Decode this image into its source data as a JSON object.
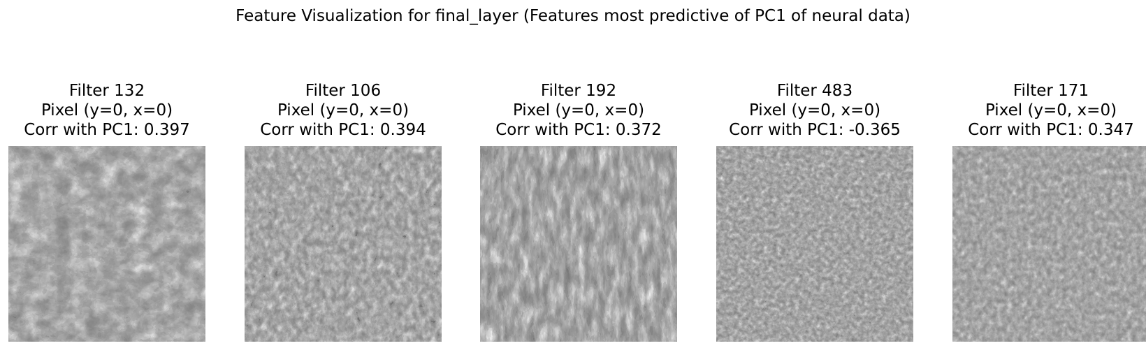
{
  "figure": {
    "title": "Feature Visualization for final_layer (Features most predictive of PC1 of neural data)"
  },
  "panels": [
    {
      "filter_label": "Filter 132",
      "pixel_label": "Pixel (y=0, x=0)",
      "corr_label": "Corr with PC1: 0.397"
    },
    {
      "filter_label": "Filter 106",
      "pixel_label": "Pixel (y=0, x=0)",
      "corr_label": "Corr with PC1: 0.394"
    },
    {
      "filter_label": "Filter 192",
      "pixel_label": "Pixel (y=0, x=0)",
      "corr_label": "Corr with PC1: 0.372"
    },
    {
      "filter_label": "Filter 483",
      "pixel_label": "Pixel (y=0, x=0)",
      "corr_label": "Corr with PC1: -0.365"
    },
    {
      "filter_label": "Filter 171",
      "pixel_label": "Pixel (y=0, x=0)",
      "corr_label": "Corr with PC1: 0.347"
    }
  ]
}
